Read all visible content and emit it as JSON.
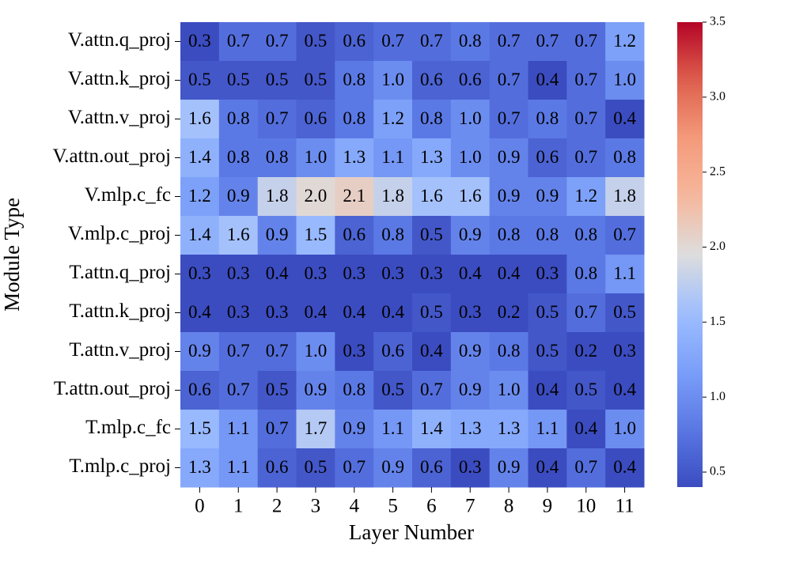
{
  "chart_data": {
    "type": "heatmap",
    "xlabel": "Layer Number",
    "ylabel": "Module Type",
    "x": [
      "0",
      "1",
      "2",
      "3",
      "4",
      "5",
      "6",
      "7",
      "8",
      "9",
      "10",
      "11"
    ],
    "y": [
      "V.attn.q_proj",
      "V.attn.k_proj",
      "V.attn.v_proj",
      "V.attn.out_proj",
      "V.mlp.c_fc",
      "V.mlp.c_proj",
      "T.attn.q_proj",
      "T.attn.k_proj",
      "T.attn.v_proj",
      "T.attn.out_proj",
      "T.mlp.c_fc",
      "T.mlp.c_proj"
    ],
    "values": [
      [
        0.3,
        0.7,
        0.7,
        0.5,
        0.6,
        0.7,
        0.7,
        0.8,
        0.7,
        0.7,
        0.7,
        1.2
      ],
      [
        0.5,
        0.5,
        0.5,
        0.5,
        0.8,
        1.0,
        0.6,
        0.6,
        0.7,
        0.4,
        0.7,
        1.0
      ],
      [
        1.6,
        0.8,
        0.7,
        0.6,
        0.8,
        1.2,
        0.8,
        1.0,
        0.7,
        0.8,
        0.7,
        0.4
      ],
      [
        1.4,
        0.8,
        0.8,
        1.0,
        1.3,
        1.1,
        1.3,
        1.0,
        0.9,
        0.6,
        0.7,
        0.8
      ],
      [
        1.2,
        0.9,
        1.8,
        2.0,
        2.1,
        1.8,
        1.6,
        1.6,
        0.9,
        0.9,
        1.2,
        1.8
      ],
      [
        1.4,
        1.6,
        0.9,
        1.5,
        0.6,
        0.8,
        0.5,
        0.9,
        0.8,
        0.8,
        0.8,
        0.7
      ],
      [
        0.3,
        0.3,
        0.4,
        0.3,
        0.3,
        0.3,
        0.3,
        0.4,
        0.4,
        0.3,
        0.8,
        1.1
      ],
      [
        0.4,
        0.3,
        0.3,
        0.4,
        0.4,
        0.4,
        0.5,
        0.3,
        0.2,
        0.5,
        0.7,
        0.5
      ],
      [
        0.9,
        0.7,
        0.7,
        1.0,
        0.3,
        0.6,
        0.4,
        0.9,
        0.8,
        0.5,
        0.2,
        0.3
      ],
      [
        0.6,
        0.7,
        0.5,
        0.9,
        0.8,
        0.5,
        0.7,
        0.9,
        1.0,
        0.4,
        0.5,
        0.4
      ],
      [
        1.5,
        1.1,
        0.7,
        1.7,
        0.9,
        1.1,
        1.4,
        1.3,
        1.3,
        1.1,
        0.4,
        1.0
      ],
      [
        1.3,
        1.1,
        0.6,
        0.5,
        0.7,
        0.9,
        0.6,
        0.3,
        0.9,
        0.4,
        0.7,
        0.4
      ]
    ],
    "value_labels": [
      [
        "0.3",
        "0.7",
        "0.7",
        "0.5",
        "0.6",
        "0.7",
        "0.7",
        "0.8",
        "0.7",
        "0.7",
        "0.7",
        "1.2"
      ],
      [
        "0.5",
        "0.5",
        "0.5",
        "0.5",
        "0.8",
        "1.0",
        "0.6",
        "0.6",
        "0.7",
        "0.4",
        "0.7",
        "1.0"
      ],
      [
        "1.6",
        "0.8",
        "0.7",
        "0.6",
        "0.8",
        "1.2",
        "0.8",
        "1.0",
        "0.7",
        "0.8",
        "0.7",
        "0.4"
      ],
      [
        "1.4",
        "0.8",
        "0.8",
        "1.0",
        "1.3",
        "1.1",
        "1.3",
        "1.0",
        "0.9",
        "0.6",
        "0.7",
        "0.8"
      ],
      [
        "1.2",
        "0.9",
        "1.8",
        "2.0",
        "2.1",
        "1.8",
        "1.6",
        "1.6",
        "0.9",
        "0.9",
        "1.2",
        "1.8"
      ],
      [
        "1.4",
        "1.6",
        "0.9",
        "1.5",
        "0.6",
        "0.8",
        "0.5",
        "0.9",
        "0.8",
        "0.8",
        "0.8",
        "0.7"
      ],
      [
        "0.3",
        "0.3",
        "0.4",
        "0.3",
        "0.3",
        "0.3",
        "0.3",
        "0.4",
        "0.4",
        "0.3",
        "0.8",
        "1.1"
      ],
      [
        "0.4",
        "0.3",
        "0.3",
        "0.4",
        "0.4",
        "0.4",
        "0.5",
        "0.3",
        "0.2",
        "0.5",
        "0.7",
        "0.5"
      ],
      [
        "0.9",
        "0.7",
        "0.7",
        "1.0",
        "0.3",
        "0.6",
        "0.4",
        "0.9",
        "0.8",
        "0.5",
        "0.2",
        "0.3"
      ],
      [
        "0.6",
        "0.7",
        "0.5",
        "0.9",
        "0.8",
        "0.5",
        "0.7",
        "0.9",
        "1.0",
        "0.4",
        "0.5",
        "0.4"
      ],
      [
        "1.5",
        "1.1",
        "0.7",
        "1.7",
        "0.9",
        "1.1",
        "1.4",
        "1.3",
        "1.3",
        "1.1",
        "0.4",
        "1.0"
      ],
      [
        "1.3",
        "1.1",
        "0.6",
        "0.5",
        "0.7",
        "0.9",
        "0.6",
        "0.3",
        "0.9",
        "0.4",
        "0.7",
        "0.4"
      ]
    ],
    "colormap": "coolwarm",
    "zlim": [
      0.4,
      3.5
    ],
    "zticks": [
      0.5,
      {
        "value": 1,
        "label": "1.0"
      },
      1.5,
      {
        "value": 2,
        "label": "2.0"
      },
      2.5,
      {
        "value": 3,
        "label": "3.0"
      },
      3.5
    ]
  }
}
